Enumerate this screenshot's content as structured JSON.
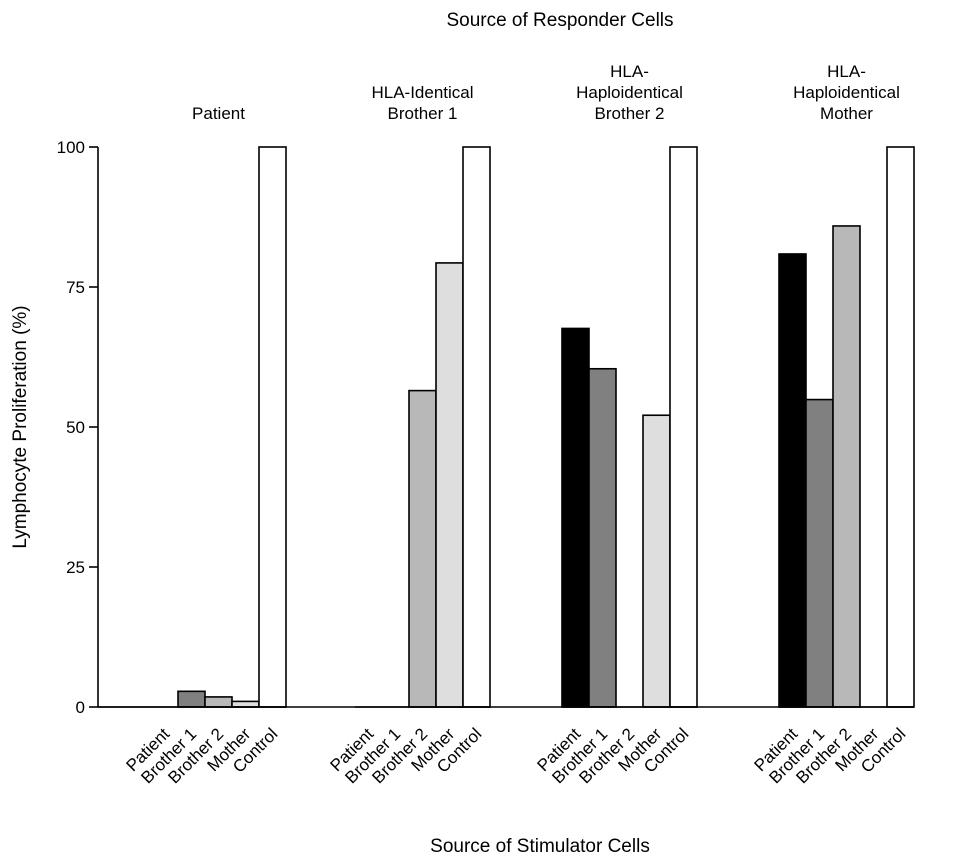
{
  "chart_data": {
    "type": "bar",
    "title": "Source of Responder Cells",
    "xlabel": "Source of Stimulator Cells",
    "ylabel": "Lymphocyte Proliferation (%)",
    "ylim": [
      0,
      100
    ],
    "yticks": [
      0,
      25,
      50,
      75,
      100
    ],
    "grid": false,
    "categories": [
      "Patient",
      "Brother 1",
      "Brother 2",
      "Mother",
      "Control"
    ],
    "category_colors": [
      "#000000",
      "#808080",
      "#b8b8b8",
      "#dedede",
      "#ffffff"
    ],
    "groups": [
      {
        "label_lines": [
          "Patient"
        ],
        "values": [
          0,
          2.8,
          1.8,
          1.0,
          100
        ]
      },
      {
        "label_lines": [
          "HLA-Identical",
          "Brother 1"
        ],
        "values": [
          0,
          0,
          56.5,
          79.3,
          100
        ]
      },
      {
        "label_lines": [
          "HLA-",
          "Haploidentical",
          "Brother 2"
        ],
        "values": [
          67.6,
          60.4,
          0,
          52.1,
          100
        ]
      },
      {
        "label_lines": [
          "HLA-",
          "Haploidentical",
          "Mother"
        ],
        "values": [
          80.9,
          54.9,
          85.9,
          0,
          100
        ]
      }
    ]
  }
}
